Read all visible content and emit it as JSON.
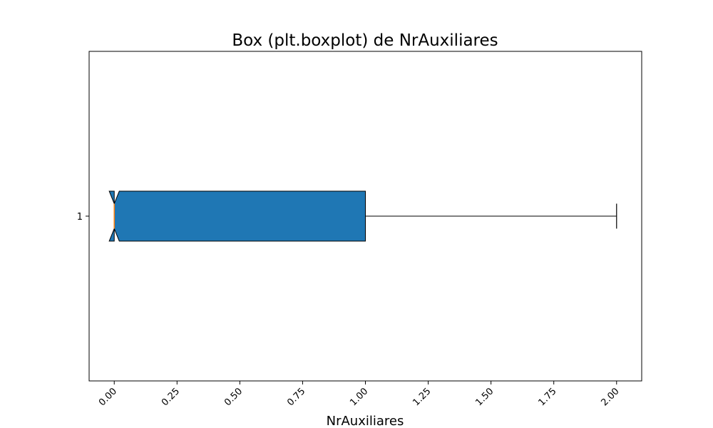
{
  "chart_data": {
    "type": "boxplot",
    "orientation": "horizontal",
    "notch": true,
    "title": "Box (plt.boxplot) de NrAuxiliares",
    "xlabel": "NrAuxiliares",
    "ylabel": "",
    "xlim": [
      -0.1,
      2.1
    ],
    "x_ticks": [
      0.0,
      0.25,
      0.5,
      0.75,
      1.0,
      1.25,
      1.5,
      1.75,
      2.0
    ],
    "x_tick_labels": [
      "0.00",
      "0.25",
      "0.50",
      "0.75",
      "1.00",
      "1.25",
      "1.50",
      "1.75",
      "2.00"
    ],
    "y_tick_labels": [
      "1"
    ],
    "boxes": [
      {
        "label": "1",
        "whisker_low": 0,
        "q1": 0,
        "median": 0,
        "q3": 1,
        "whisker_high": 2,
        "notch_low": -0.02,
        "notch_high": 0.02
      }
    ],
    "box_color": "#1f77b4",
    "median_color": "#ff7f0e",
    "edge_color": "#000000"
  }
}
